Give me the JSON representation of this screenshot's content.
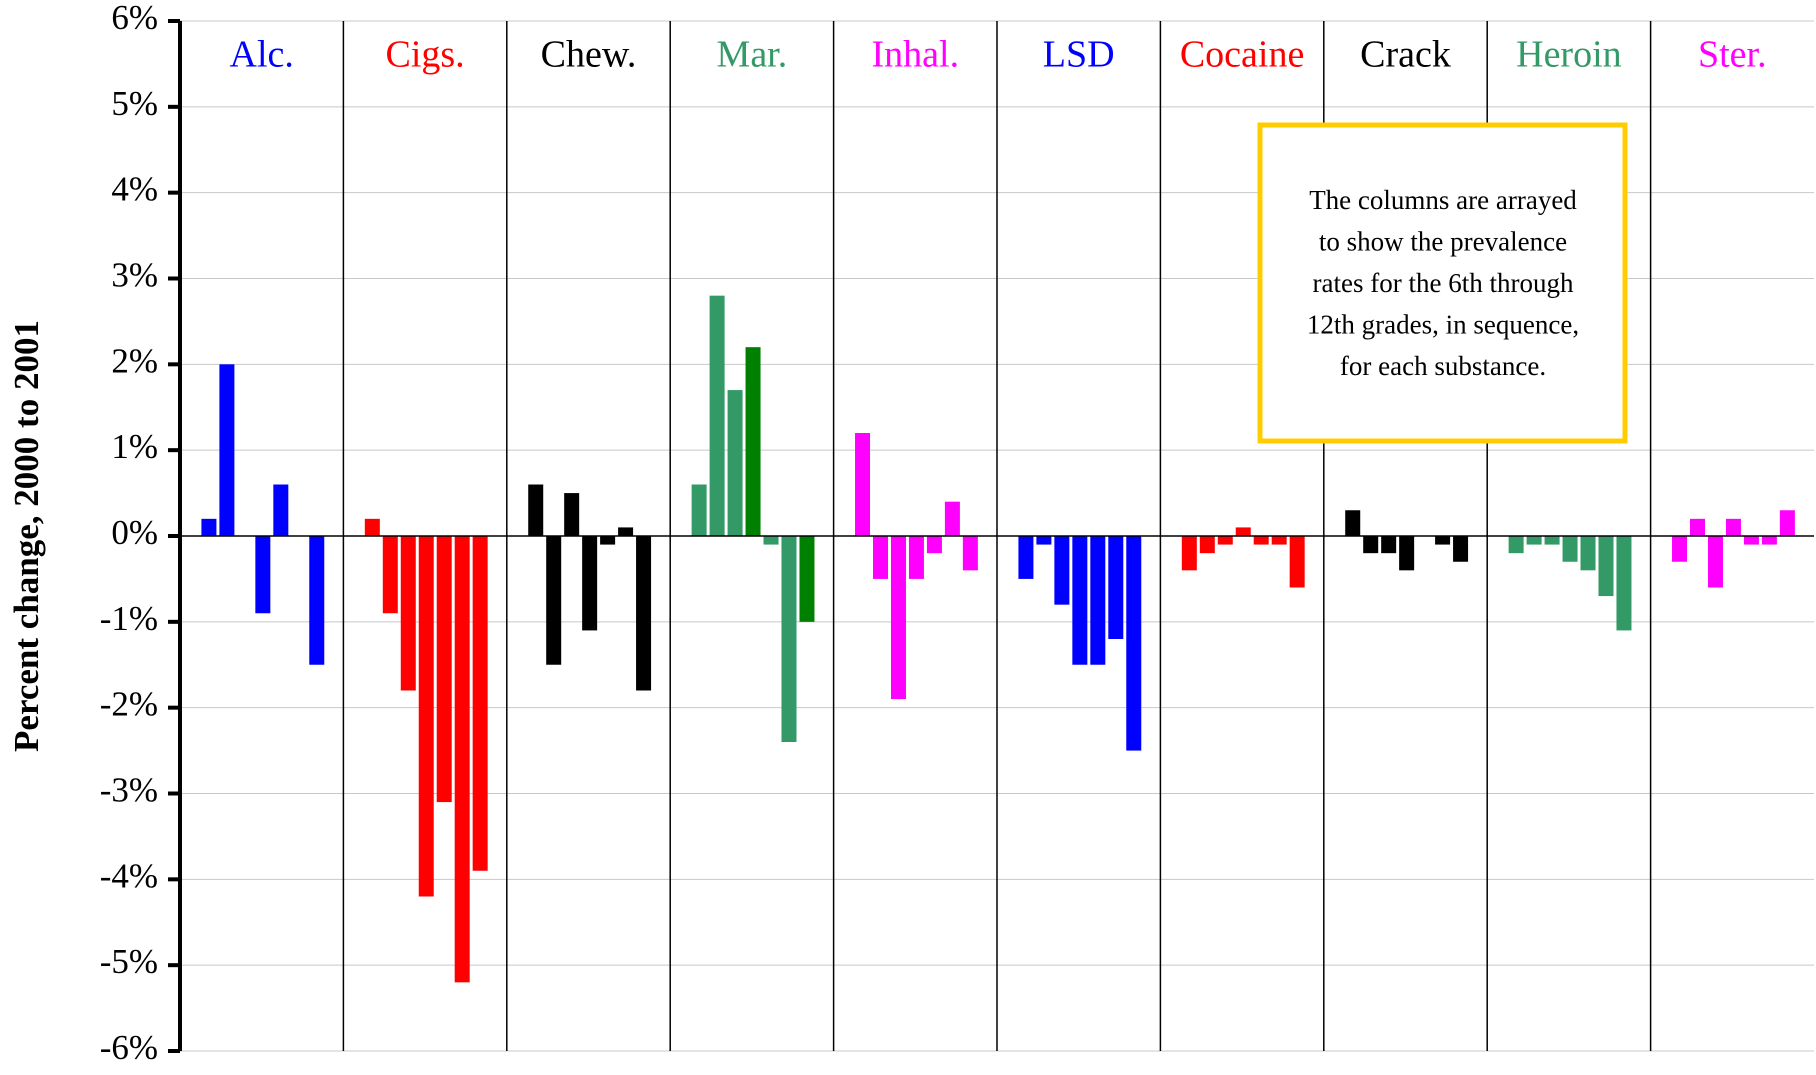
{
  "chart_data": {
    "type": "bar",
    "y_label": "Percent change, 2000 to 2001",
    "ylim": [
      -6,
      6
    ],
    "yticks": [
      {
        "value": 6,
        "label": "6%"
      },
      {
        "value": 5,
        "label": "5%"
      },
      {
        "value": 4,
        "label": "4%"
      },
      {
        "value": 3,
        "label": "3%"
      },
      {
        "value": 2,
        "label": "2%"
      },
      {
        "value": 1,
        "label": "1%"
      },
      {
        "value": 0,
        "label": "0%"
      },
      {
        "value": -1,
        "label": "-1%"
      },
      {
        "value": -2,
        "label": "-2%"
      },
      {
        "value": -3,
        "label": "-3%"
      },
      {
        "value": -4,
        "label": "-4%"
      },
      {
        "value": -5,
        "label": "-5%"
      },
      {
        "value": -6,
        "label": "-6%"
      }
    ],
    "grid": true,
    "groups": [
      {
        "name": "Alc.",
        "color": "#0000ff",
        "values": [
          0.2,
          2.0,
          0,
          -0.9,
          0.6,
          0,
          -1.5
        ]
      },
      {
        "name": "Cigs.",
        "color": "#ff0000",
        "values": [
          0.2,
          -0.9,
          -1.8,
          -4.2,
          -3.1,
          -5.2,
          -3.9
        ]
      },
      {
        "name": "Chew.",
        "color": "#000000",
        "values": [
          0.6,
          -1.5,
          0.5,
          -1.1,
          -0.1,
          0.1,
          -1.8
        ]
      },
      {
        "name": "Mar.",
        "color": "#339966",
        "colors": [
          "#339966",
          "#339966",
          "#339966",
          "#008000",
          "#339966",
          "#339966",
          "#008000"
        ],
        "values": [
          0.6,
          2.8,
          1.7,
          2.2,
          -0.1,
          -2.4,
          -1.0
        ]
      },
      {
        "name": "Inhal.",
        "color": "#ff00ff",
        "values": [
          1.2,
          -0.5,
          -1.9,
          -0.5,
          -0.2,
          0.4,
          -0.4
        ]
      },
      {
        "name": "LSD",
        "color": "#0000ff",
        "values": [
          -0.5,
          -0.1,
          -0.8,
          -1.5,
          -1.5,
          -1.2,
          -2.5
        ]
      },
      {
        "name": "Cocaine",
        "color": "#ff0000",
        "values": [
          -0.4,
          -0.2,
          -0.1,
          0.1,
          -0.1,
          -0.1,
          -0.6
        ]
      },
      {
        "name": "Crack",
        "color": "#000000",
        "values": [
          0.3,
          -0.2,
          -0.2,
          -0.4,
          0,
          -0.1,
          -0.3
        ]
      },
      {
        "name": "Heroin",
        "color": "#339966",
        "values": [
          -0.2,
          -0.1,
          -0.1,
          -0.3,
          -0.4,
          -0.7,
          -1.1
        ]
      },
      {
        "name": "Ster.",
        "color": "#ff00ff",
        "values": [
          -0.3,
          0.2,
          -0.6,
          0.2,
          -0.1,
          -0.1,
          0.3
        ]
      }
    ],
    "annotation": [
      "The columns are arrayed",
      "to show the prevalence",
      "rates for the 6th through",
      "12th grades, in sequence,",
      "for each substance."
    ],
    "annotation_border_color": "#ffcc00"
  }
}
